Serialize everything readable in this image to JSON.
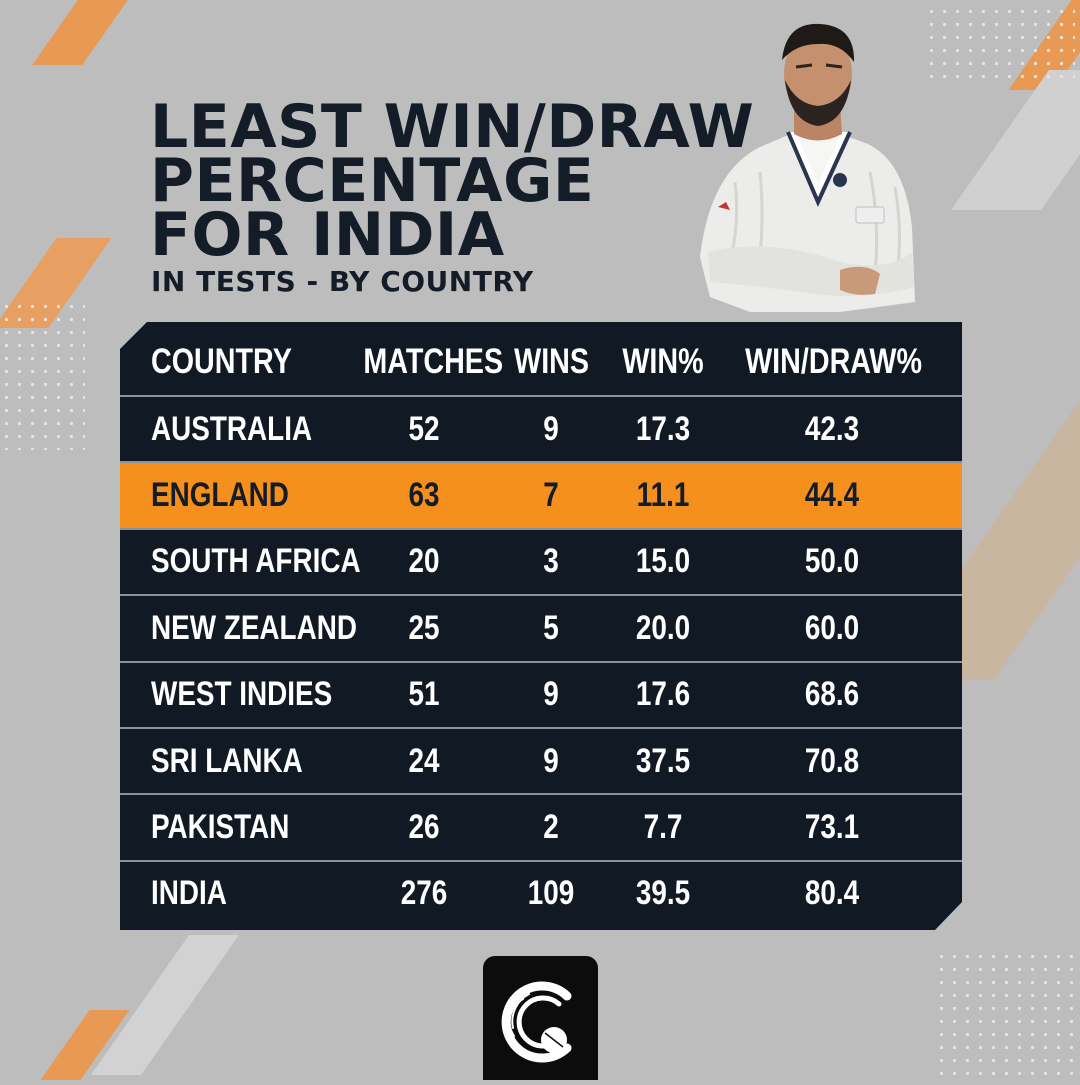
{
  "title": {
    "line1": "LEAST WIN/DRAW",
    "line2": "PERCENTAGE",
    "line3": "FOR INDIA",
    "subtitle": "IN TESTS - BY COUNTRY"
  },
  "colors": {
    "background": "#bdbdbd",
    "table_bg": "#111a24",
    "highlight": "#f5901e",
    "accent": "#f5a04a"
  },
  "table": {
    "headers": [
      "COUNTRY",
      "MATCHES",
      "WINS",
      "WIN%",
      "WIN/DRAW%"
    ],
    "highlighted_row": 1,
    "rows": [
      [
        "AUSTRALIA",
        "52",
        "9",
        "17.3",
        "42.3"
      ],
      [
        "ENGLAND",
        "63",
        "7",
        "11.1",
        "44.4"
      ],
      [
        "SOUTH AFRICA",
        "20",
        "3",
        "15.0",
        "50.0"
      ],
      [
        "NEW ZEALAND",
        "25",
        "5",
        "20.0",
        "60.0"
      ],
      [
        "WEST INDIES",
        "51",
        "9",
        "17.6",
        "68.6"
      ],
      [
        "SRI LANKA",
        "24",
        "9",
        "37.5",
        "70.8"
      ],
      [
        "PAKISTAN",
        "26",
        "2",
        "7.7",
        "73.1"
      ],
      [
        "INDIA",
        "276",
        "109",
        "39.5",
        "80.4"
      ]
    ]
  },
  "icons": {
    "player": "cricketer-photo",
    "logo": "cricket-ball-logo-icon"
  }
}
